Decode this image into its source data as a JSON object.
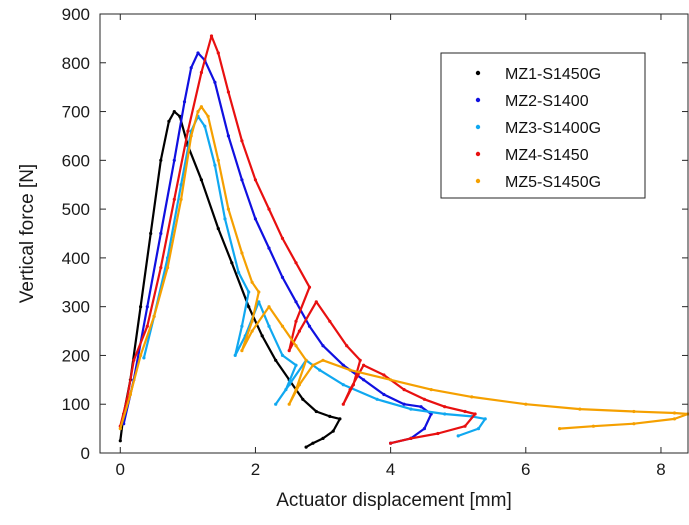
{
  "chart_data": {
    "type": "scatter",
    "title": "",
    "xlabel": "Actuator displacement [mm]",
    "ylabel": "Vertical force [N]",
    "xlim": [
      -0.3,
      8.4
    ],
    "ylim": [
      0,
      900
    ],
    "xticks": [
      0,
      2,
      4,
      6,
      8
    ],
    "yticks": [
      0,
      100,
      200,
      300,
      400,
      500,
      600,
      700,
      800,
      900
    ],
    "grid": false,
    "legend_position": "top-right",
    "series": [
      {
        "name": "MZ1-S1450G",
        "color": "#000000",
        "points": [
          [
            0.0,
            25
          ],
          [
            0.05,
            80
          ],
          [
            0.15,
            150
          ],
          [
            0.3,
            300
          ],
          [
            0.45,
            450
          ],
          [
            0.6,
            600
          ],
          [
            0.72,
            680
          ],
          [
            0.8,
            700
          ],
          [
            0.88,
            690
          ],
          [
            1.0,
            630
          ],
          [
            1.2,
            560
          ],
          [
            1.45,
            460
          ],
          [
            1.65,
            390
          ],
          [
            1.9,
            300
          ],
          [
            2.1,
            240
          ],
          [
            2.3,
            190
          ],
          [
            2.5,
            150
          ],
          [
            2.7,
            110
          ],
          [
            2.9,
            85
          ],
          [
            3.1,
            75
          ],
          [
            3.25,
            70
          ],
          [
            3.15,
            45
          ],
          [
            3.0,
            30
          ],
          [
            2.85,
            20
          ],
          [
            2.75,
            12
          ]
        ]
      },
      {
        "name": "MZ2-S1400",
        "color": "#1010e0",
        "points": [
          [
            0.05,
            60
          ],
          [
            0.2,
            150
          ],
          [
            0.4,
            300
          ],
          [
            0.6,
            450
          ],
          [
            0.8,
            600
          ],
          [
            0.95,
            720
          ],
          [
            1.05,
            790
          ],
          [
            1.15,
            820
          ],
          [
            1.25,
            805
          ],
          [
            1.4,
            760
          ],
          [
            1.6,
            650
          ],
          [
            1.8,
            560
          ],
          [
            2.0,
            480
          ],
          [
            2.2,
            420
          ],
          [
            2.4,
            360
          ],
          [
            2.6,
            310
          ],
          [
            2.8,
            260
          ],
          [
            3.0,
            220
          ],
          [
            3.3,
            180
          ],
          [
            3.6,
            150
          ],
          [
            3.9,
            120
          ],
          [
            4.2,
            100
          ],
          [
            4.45,
            95
          ],
          [
            4.6,
            80
          ],
          [
            4.5,
            50
          ],
          [
            4.3,
            30
          ],
          [
            4.0,
            20
          ]
        ]
      },
      {
        "name": "MZ3-S1400G",
        "color": "#10a8f0",
        "points": [
          [
            0.35,
            195
          ],
          [
            0.5,
            280
          ],
          [
            0.7,
            400
          ],
          [
            0.9,
            550
          ],
          [
            1.05,
            660
          ],
          [
            1.15,
            690
          ],
          [
            1.25,
            670
          ],
          [
            1.4,
            590
          ],
          [
            1.55,
            480
          ],
          [
            1.75,
            370
          ],
          [
            1.9,
            330
          ],
          [
            1.8,
            260
          ],
          [
            1.7,
            200
          ],
          [
            1.85,
            240
          ],
          [
            2.05,
            310
          ],
          [
            2.2,
            260
          ],
          [
            2.4,
            200
          ],
          [
            2.6,
            180
          ],
          [
            2.45,
            130
          ],
          [
            2.3,
            100
          ],
          [
            2.5,
            140
          ],
          [
            2.75,
            190
          ],
          [
            2.95,
            170
          ],
          [
            3.3,
            140
          ],
          [
            3.8,
            110
          ],
          [
            4.3,
            90
          ],
          [
            4.8,
            80
          ],
          [
            5.2,
            75
          ],
          [
            5.4,
            70
          ],
          [
            5.3,
            50
          ],
          [
            5.0,
            35
          ]
        ]
      },
      {
        "name": "MZ4-S1450",
        "color": "#e81010",
        "points": [
          [
            0.0,
            55
          ],
          [
            0.1,
            110
          ],
          [
            0.2,
            190
          ],
          [
            0.4,
            260
          ],
          [
            0.6,
            380
          ],
          [
            0.8,
            520
          ],
          [
            1.0,
            660
          ],
          [
            1.2,
            780
          ],
          [
            1.35,
            855
          ],
          [
            1.45,
            820
          ],
          [
            1.6,
            740
          ],
          [
            1.8,
            640
          ],
          [
            2.0,
            560
          ],
          [
            2.2,
            500
          ],
          [
            2.4,
            440
          ],
          [
            2.6,
            390
          ],
          [
            2.8,
            340
          ],
          [
            2.6,
            270
          ],
          [
            2.5,
            210
          ],
          [
            2.65,
            250
          ],
          [
            2.9,
            310
          ],
          [
            3.1,
            270
          ],
          [
            3.35,
            220
          ],
          [
            3.55,
            190
          ],
          [
            3.45,
            140
          ],
          [
            3.3,
            100
          ],
          [
            3.4,
            130
          ],
          [
            3.6,
            180
          ],
          [
            3.9,
            160
          ],
          [
            4.2,
            130
          ],
          [
            4.5,
            110
          ],
          [
            4.8,
            95
          ],
          [
            5.1,
            85
          ],
          [
            5.25,
            80
          ],
          [
            5.1,
            55
          ],
          [
            4.7,
            40
          ],
          [
            4.3,
            30
          ],
          [
            4.0,
            20
          ]
        ]
      },
      {
        "name": "MZ5-S1450G",
        "color": "#f5a000",
        "points": [
          [
            0.0,
            50
          ],
          [
            0.15,
            120
          ],
          [
            0.3,
            200
          ],
          [
            0.5,
            280
          ],
          [
            0.7,
            380
          ],
          [
            0.9,
            520
          ],
          [
            1.05,
            650
          ],
          [
            1.15,
            700
          ],
          [
            1.2,
            710
          ],
          [
            1.3,
            690
          ],
          [
            1.45,
            600
          ],
          [
            1.6,
            500
          ],
          [
            1.8,
            410
          ],
          [
            1.95,
            350
          ],
          [
            2.05,
            330
          ],
          [
            1.95,
            270
          ],
          [
            1.8,
            210
          ],
          [
            1.95,
            250
          ],
          [
            2.2,
            300
          ],
          [
            2.4,
            260
          ],
          [
            2.6,
            220
          ],
          [
            2.75,
            190
          ],
          [
            2.6,
            130
          ],
          [
            2.5,
            100
          ],
          [
            2.65,
            140
          ],
          [
            2.85,
            180
          ],
          [
            3.0,
            190
          ],
          [
            3.4,
            170
          ],
          [
            4.0,
            150
          ],
          [
            4.6,
            130
          ],
          [
            5.2,
            115
          ],
          [
            6.0,
            100
          ],
          [
            6.8,
            90
          ],
          [
            7.6,
            85
          ],
          [
            8.2,
            82
          ],
          [
            8.4,
            80
          ],
          [
            8.2,
            70
          ],
          [
            7.6,
            60
          ],
          [
            7.0,
            55
          ],
          [
            6.5,
            50
          ]
        ]
      }
    ]
  }
}
